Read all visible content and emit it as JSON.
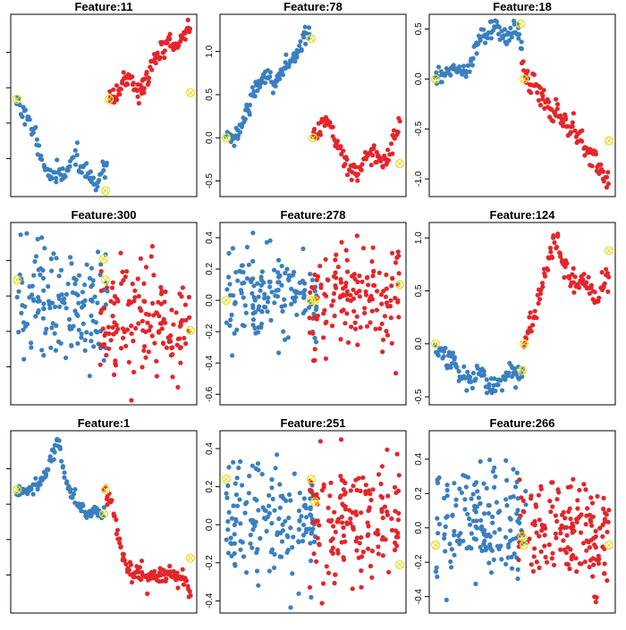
{
  "figure": {
    "background": "#ffffff"
  },
  "colors": {
    "left": "#3a7fc0",
    "right": "#e3262b",
    "marker": "#e6e03a"
  },
  "marker_icon": "circled-x",
  "chart_data": [
    {
      "title": "Feature:11",
      "type": "scatter",
      "grid": false,
      "ylim": [
        -0.5,
        2.3
      ],
      "xlim": [
        0,
        100
      ],
      "y_ticks": [],
      "y_tick_labels": [],
      "seed": 11,
      "series": [
        {
          "name": "",
          "color": "#3a7fc0",
          "shape": "trend",
          "anchors": [
            [
              2,
              1.0
            ],
            [
              8,
              0.65
            ],
            [
              14,
              0.3
            ],
            [
              18,
              -0.15
            ],
            [
              24,
              -0.25
            ],
            [
              30,
              -0.1
            ],
            [
              34,
              0.15
            ],
            [
              38,
              -0.1
            ],
            [
              42,
              -0.2
            ],
            [
              45,
              -0.35
            ],
            [
              48,
              -0.2
            ],
            [
              52,
              -0.1
            ]
          ],
          "count": 90,
          "jitter": 0.08
        },
        {
          "name": "",
          "color": "#e3262b",
          "shape": "trend",
          "anchors": [
            [
              53,
              1.0
            ],
            [
              56,
              1.0
            ],
            [
              60,
              1.2
            ],
            [
              64,
              1.4
            ],
            [
              68,
              1.1
            ],
            [
              72,
              1.2
            ],
            [
              78,
              1.6
            ],
            [
              82,
              1.8
            ],
            [
              86,
              1.9
            ],
            [
              90,
              1.8
            ],
            [
              94,
              2.0
            ],
            [
              98,
              2.2
            ]
          ],
          "count": 110,
          "jitter": 0.08
        }
      ],
      "markers": [
        [
          2,
          1.0
        ],
        [
          51,
          -0.45
        ],
        [
          53,
          1.0
        ],
        [
          98,
          1.1
        ]
      ]
    },
    {
      "title": "Feature:78",
      "type": "scatter",
      "grid": false,
      "ylim": [
        -0.65,
        1.4
      ],
      "xlim": [
        0,
        100
      ],
      "y_ticks": [
        -0.5,
        0.0,
        0.5,
        1.0
      ],
      "y_tick_labels": [
        "-0.5",
        "0.0",
        "0.5",
        "1.0"
      ],
      "seed": 78,
      "series": [
        {
          "name": "",
          "color": "#3a7fc0",
          "shape": "trend",
          "anchors": [
            [
              2,
              0.0
            ],
            [
              6,
              0.0
            ],
            [
              10,
              0.1
            ],
            [
              15,
              0.4
            ],
            [
              20,
              0.65
            ],
            [
              25,
              0.75
            ],
            [
              28,
              0.6
            ],
            [
              34,
              0.8
            ],
            [
              40,
              0.95
            ],
            [
              45,
              1.15
            ],
            [
              48,
              1.25
            ]
          ],
          "count": 100,
          "jitter": 0.05
        },
        {
          "name": "",
          "color": "#e3262b",
          "shape": "trend",
          "anchors": [
            [
              50,
              0.0
            ],
            [
              54,
              0.1
            ],
            [
              58,
              0.2
            ],
            [
              62,
              0.05
            ],
            [
              66,
              -0.2
            ],
            [
              70,
              -0.35
            ],
            [
              75,
              -0.45
            ],
            [
              80,
              -0.2
            ],
            [
              85,
              -0.25
            ],
            [
              90,
              -0.3
            ],
            [
              95,
              0.0
            ],
            [
              98,
              0.2
            ]
          ],
          "count": 100,
          "jitter": 0.06
        }
      ],
      "markers": [
        [
          2,
          0.0
        ],
        [
          49,
          1.15
        ],
        [
          50,
          0.0
        ],
        [
          98,
          -0.3
        ]
      ]
    },
    {
      "title": "Feature:18",
      "type": "scatter",
      "grid": false,
      "ylim": [
        -1.15,
        0.62
      ],
      "xlim": [
        0,
        100
      ],
      "y_ticks": [
        -1.0,
        -0.5,
        0.0,
        0.5
      ],
      "y_tick_labels": [
        "-1.0",
        "-0.5",
        "0.0",
        "0.5"
      ],
      "seed": 18,
      "series": [
        {
          "name": "",
          "color": "#3a7fc0",
          "shape": "trend",
          "anchors": [
            [
              2,
              0.0
            ],
            [
              8,
              0.05
            ],
            [
              14,
              0.1
            ],
            [
              18,
              0.05
            ],
            [
              22,
              0.2
            ],
            [
              26,
              0.4
            ],
            [
              30,
              0.45
            ],
            [
              35,
              0.55
            ],
            [
              40,
              0.4
            ],
            [
              45,
              0.5
            ],
            [
              48,
              0.45
            ],
            [
              50,
              0.3
            ]
          ],
          "count": 100,
          "jitter": 0.05
        },
        {
          "name": "",
          "color": "#e3262b",
          "shape": "trend",
          "anchors": [
            [
              50,
              0.1
            ],
            [
              54,
              -0.05
            ],
            [
              58,
              -0.1
            ],
            [
              62,
              -0.2
            ],
            [
              66,
              -0.3
            ],
            [
              72,
              -0.4
            ],
            [
              78,
              -0.5
            ],
            [
              84,
              -0.65
            ],
            [
              88,
              -0.8
            ],
            [
              92,
              -0.85
            ],
            [
              96,
              -1.0
            ],
            [
              98,
              -1.05
            ]
          ],
          "count": 100,
          "jitter": 0.06
        }
      ],
      "markers": [
        [
          2,
          0.0
        ],
        [
          49,
          0.55
        ],
        [
          51,
          0.0
        ],
        [
          98,
          -0.62
        ]
      ]
    },
    {
      "title": "Feature:300",
      "type": "scatter",
      "grid": false,
      "ylim": [
        -1.0,
        1.1
      ],
      "xlim": [
        0,
        100
      ],
      "y_ticks": [],
      "y_tick_labels": [],
      "seed": 300,
      "series": [
        {
          "name": "",
          "color": "#3a7fc0",
          "shape": "cloud",
          "xrange": [
            2,
            52
          ],
          "ymean": 0.15,
          "ysd": 0.35,
          "count": 150
        },
        {
          "name": "",
          "color": "#e3262b",
          "shape": "cloud",
          "xrange": [
            48,
            98
          ],
          "ymean": -0.05,
          "ysd": 0.35,
          "count": 150
        }
      ],
      "markers": [
        [
          2,
          0.45
        ],
        [
          50,
          0.7
        ],
        [
          51,
          0.45
        ],
        [
          98,
          -0.15
        ]
      ]
    },
    {
      "title": "Feature:278",
      "type": "scatter",
      "grid": false,
      "ylim": [
        -0.65,
        0.48
      ],
      "xlim": [
        0,
        100
      ],
      "y_ticks": [
        -0.6,
        -0.4,
        -0.2,
        0.0,
        0.2,
        0.4
      ],
      "y_tick_labels": [
        "-0.6",
        "-0.4",
        "-0.2",
        "0.0",
        "0.2",
        "0.4"
      ],
      "seed": 278,
      "series": [
        {
          "name": "",
          "color": "#3a7fc0",
          "shape": "cloud",
          "xrange": [
            2,
            52
          ],
          "ymean": 0.02,
          "ysd": 0.15,
          "count": 150
        },
        {
          "name": "",
          "color": "#e3262b",
          "shape": "cloud",
          "xrange": [
            48,
            98
          ],
          "ymean": 0.02,
          "ysd": 0.16,
          "count": 150
        }
      ],
      "markers": [
        [
          2,
          0.0
        ],
        [
          49,
          0.0
        ],
        [
          51,
          0.0
        ],
        [
          98,
          0.1
        ]
      ]
    },
    {
      "title": "Feature:124",
      "type": "scatter",
      "grid": false,
      "ylim": [
        -0.55,
        1.12
      ],
      "xlim": [
        0,
        100
      ],
      "y_ticks": [
        -0.5,
        0.0,
        0.5,
        1.0
      ],
      "y_tick_labels": [
        "-0.5",
        "0.0",
        "0.5",
        "1.0"
      ],
      "seed": 124,
      "series": [
        {
          "name": "",
          "color": "#3a7fc0",
          "shape": "trend",
          "anchors": [
            [
              2,
              0.0
            ],
            [
              6,
              -0.1
            ],
            [
              10,
              -0.15
            ],
            [
              14,
              -0.2
            ],
            [
              18,
              -0.3
            ],
            [
              22,
              -0.35
            ],
            [
              26,
              -0.25
            ],
            [
              30,
              -0.35
            ],
            [
              35,
              -0.4
            ],
            [
              40,
              -0.3
            ],
            [
              45,
              -0.25
            ],
            [
              48,
              -0.3
            ],
            [
              50,
              -0.25
            ]
          ],
          "count": 100,
          "jitter": 0.05
        },
        {
          "name": "",
          "color": "#e3262b",
          "shape": "trend",
          "anchors": [
            [
              51,
              0.0
            ],
            [
              54,
              0.2
            ],
            [
              58,
              0.35
            ],
            [
              62,
              0.65
            ],
            [
              65,
              0.8
            ],
            [
              68,
              1.0
            ],
            [
              72,
              0.8
            ],
            [
              76,
              0.65
            ],
            [
              80,
              0.55
            ],
            [
              84,
              0.6
            ],
            [
              88,
              0.5
            ],
            [
              92,
              0.45
            ],
            [
              96,
              0.6
            ],
            [
              98,
              0.65
            ]
          ],
          "count": 100,
          "jitter": 0.06
        }
      ],
      "markers": [
        [
          2,
          0.0
        ],
        [
          50,
          -0.25
        ],
        [
          51,
          0.0
        ],
        [
          98,
          0.88
        ]
      ]
    },
    {
      "title": "Feature:1",
      "type": "scatter",
      "grid": false,
      "ylim": [
        -1.2,
        1.0
      ],
      "xlim": [
        0,
        100
      ],
      "y_ticks": [],
      "y_tick_labels": [],
      "seed": 1,
      "series": [
        {
          "name": "",
          "color": "#3a7fc0",
          "shape": "trend",
          "anchors": [
            [
              2,
              0.3
            ],
            [
              8,
              0.3
            ],
            [
              14,
              0.35
            ],
            [
              18,
              0.5
            ],
            [
              22,
              0.75
            ],
            [
              24,
              0.9
            ],
            [
              26,
              0.8
            ],
            [
              28,
              0.5
            ],
            [
              32,
              0.25
            ],
            [
              36,
              0.15
            ],
            [
              40,
              0.0
            ],
            [
              44,
              0.05
            ],
            [
              48,
              0.0
            ],
            [
              50,
              0.0
            ]
          ],
          "count": 100,
          "jitter": 0.04
        },
        {
          "name": "",
          "color": "#e3262b",
          "shape": "trend",
          "anchors": [
            [
              50,
              0.3
            ],
            [
              53,
              0.2
            ],
            [
              56,
              0.0
            ],
            [
              58,
              -0.3
            ],
            [
              62,
              -0.6
            ],
            [
              66,
              -0.8
            ],
            [
              70,
              -0.7
            ],
            [
              74,
              -0.8
            ],
            [
              78,
              -0.75
            ],
            [
              82,
              -0.8
            ],
            [
              86,
              -0.7
            ],
            [
              90,
              -0.85
            ],
            [
              94,
              -0.8
            ],
            [
              98,
              -0.95
            ]
          ],
          "count": 110,
          "jitter": 0.06
        }
      ],
      "markers": [
        [
          2,
          0.3
        ],
        [
          50,
          0.0
        ],
        [
          51,
          0.3
        ],
        [
          98,
          -0.55
        ]
      ]
    },
    {
      "title": "Feature:251",
      "type": "scatter",
      "grid": false,
      "ylim": [
        -0.45,
        0.48
      ],
      "xlim": [
        0,
        100
      ],
      "y_ticks": [
        -0.4,
        -0.2,
        0.0,
        0.2,
        0.4
      ],
      "y_tick_labels": [
        "-0.4",
        "-0.2",
        "0.0",
        "0.2",
        "0.4"
      ],
      "seed": 251,
      "series": [
        {
          "name": "",
          "color": "#3a7fc0",
          "shape": "cloud",
          "xrange": [
            2,
            52
          ],
          "ymean": 0.02,
          "ysd": 0.16,
          "count": 160
        },
        {
          "name": "",
          "color": "#e3262b",
          "shape": "cloud",
          "xrange": [
            48,
            98
          ],
          "ymean": 0.02,
          "ysd": 0.16,
          "count": 160
        }
      ],
      "markers": [
        [
          2,
          0.24
        ],
        [
          49,
          0.24
        ],
        [
          51,
          0.12
        ],
        [
          98,
          -0.21
        ]
      ]
    },
    {
      "title": "Feature:266",
      "type": "scatter",
      "grid": false,
      "ylim": [
        -0.48,
        0.55
      ],
      "xlim": [
        0,
        100
      ],
      "y_ticks": [
        -0.4,
        -0.2,
        0.0,
        0.2,
        0.4
      ],
      "y_tick_labels": [
        "-0.4",
        "-0.2",
        "0.0",
        "0.2",
        "0.4"
      ],
      "seed": 266,
      "series": [
        {
          "name": "",
          "color": "#3a7fc0",
          "shape": "cloud",
          "xrange": [
            2,
            52
          ],
          "ymean": 0.02,
          "ysd": 0.17,
          "count": 160
        },
        {
          "name": "",
          "color": "#e3262b",
          "shape": "cloud",
          "xrange": [
            48,
            98
          ],
          "ymean": -0.02,
          "ysd": 0.15,
          "count": 160
        }
      ],
      "markers": [
        [
          2,
          -0.1
        ],
        [
          50,
          -0.05
        ],
        [
          51,
          -0.1
        ],
        [
          98,
          -0.1
        ]
      ]
    }
  ]
}
